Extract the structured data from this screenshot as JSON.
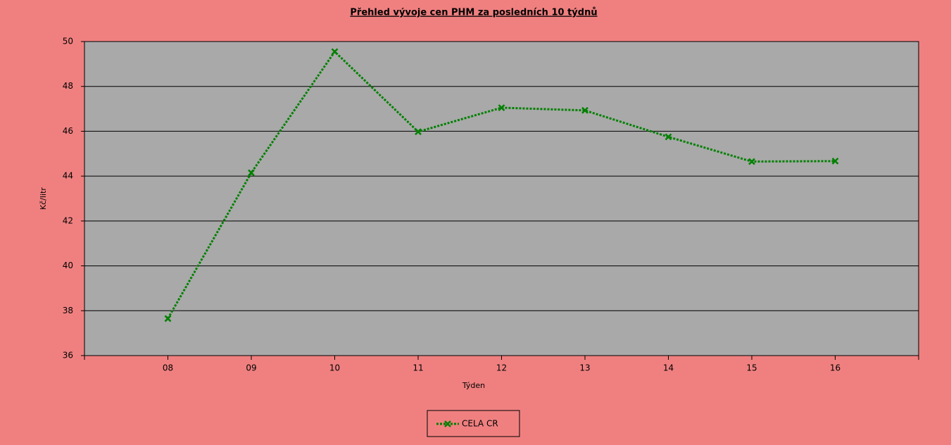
{
  "chart_data": {
    "type": "line",
    "title": "Přehled vývoje cen PHM za posledních 10 týdnů",
    "x_label": "Týden",
    "y_label": "Kč/litr",
    "categories": [
      "08",
      "09",
      "10",
      "11",
      "12",
      "13",
      "14",
      "15",
      "16"
    ],
    "series": [
      {
        "name": "CELA CR",
        "color": "#008000",
        "values": [
          37.65,
          44.15,
          49.55,
          45.98,
          47.05,
          46.93,
          45.75,
          44.65,
          44.67
        ]
      }
    ],
    "ylim": [
      36,
      50
    ],
    "yticks": [
      36,
      38,
      40,
      42,
      44,
      46,
      48,
      50
    ],
    "grid": true
  }
}
